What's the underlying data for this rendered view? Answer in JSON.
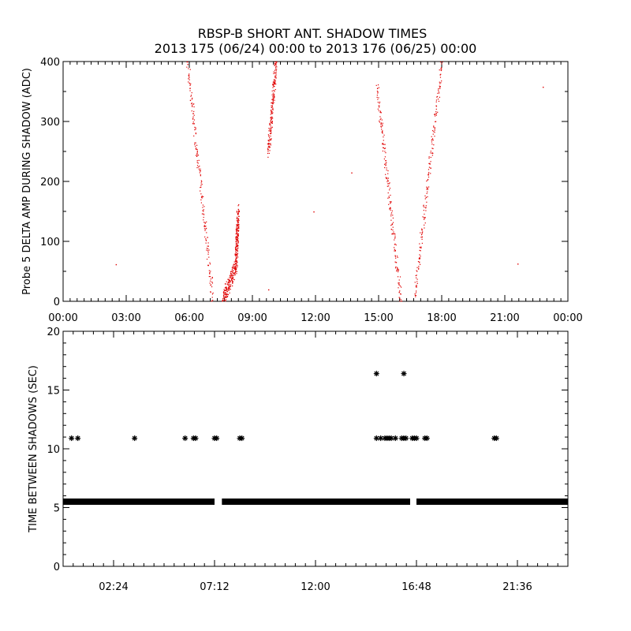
{
  "title": "RBSP-B SHORT ANT. SHADOW TIMES",
  "subtitle": "2013 175 (06/24) 00:00 to 2013 176 (06/25) 00:00",
  "chart_data": [
    {
      "type": "scatter",
      "ylabel": "Probe 5 DELTA AMP DURING SHADOW (ADC)",
      "xlim": [
        0,
        24
      ],
      "ylim": [
        0,
        400
      ],
      "xticks": [
        0,
        3,
        6,
        9,
        12,
        15,
        18,
        21,
        24
      ],
      "xtick_labels": [
        "00:00",
        "03:00",
        "06:00",
        "09:00",
        "12:00",
        "15:00",
        "18:00",
        "21:00",
        "00:00"
      ],
      "yticks": [
        0,
        100,
        200,
        300,
        400
      ],
      "ytick_labels": [
        "0",
        "100",
        "200",
        "300",
        "400"
      ],
      "color": "#e00000",
      "marker": "dot",
      "segments": [
        {
          "x_start": 5.9,
          "x_end": 7.1,
          "y_start": 400,
          "y_end": 5
        },
        {
          "x_start": 7.6,
          "x_end": 8.2,
          "y_start": 5,
          "y_end": 60
        },
        {
          "x_start": 8.2,
          "x_end": 8.3,
          "y_start": 60,
          "y_end": 150
        },
        {
          "x_start": 9.75,
          "x_end": 10.1,
          "y_start": 250,
          "y_end": 400
        },
        {
          "x_start": 14.9,
          "x_end": 16.05,
          "y_start": 360,
          "y_end": 3
        },
        {
          "x_start": 16.7,
          "x_end": 18.0,
          "y_start": 10,
          "y_end": 400
        }
      ],
      "isolated_points": [
        {
          "x": 2.5,
          "y": 62
        },
        {
          "x": 9.75,
          "y": 20
        },
        {
          "x": 11.9,
          "y": 150
        },
        {
          "x": 13.7,
          "y": 215
        },
        {
          "x": 21.6,
          "y": 63
        },
        {
          "x": 22.8,
          "y": 358
        }
      ]
    },
    {
      "type": "scatter",
      "ylabel": "TIME BETWEEN SHADOWS (SEC)",
      "xlim": [
        0,
        24
      ],
      "ylim": [
        0,
        20
      ],
      "xticks": [
        2.4,
        7.2,
        12.0,
        16.8,
        21.6
      ],
      "xtick_labels": [
        "02:24",
        "07:12",
        "12:00",
        "16:48",
        "21:36"
      ],
      "yticks": [
        0,
        5,
        10,
        15,
        20
      ],
      "ytick_labels": [
        "0",
        "5",
        "10",
        "15",
        "20"
      ],
      "color": "#000000",
      "marker": "asterisk",
      "baseline": {
        "y": 5.5,
        "segments": [
          [
            0,
            7.2
          ],
          [
            7.55,
            16.5
          ],
          [
            16.8,
            24
          ]
        ]
      },
      "points": [
        {
          "x": 0.4,
          "y": 10.9
        },
        {
          "x": 0.7,
          "y": 10.9
        },
        {
          "x": 3.4,
          "y": 10.9
        },
        {
          "x": 5.8,
          "y": 10.9
        },
        {
          "x": 6.2,
          "y": 10.9
        },
        {
          "x": 6.3,
          "y": 10.9
        },
        {
          "x": 7.2,
          "y": 10.9
        },
        {
          "x": 7.3,
          "y": 10.9
        },
        {
          "x": 8.4,
          "y": 10.9
        },
        {
          "x": 8.5,
          "y": 10.9
        },
        {
          "x": 14.9,
          "y": 16.4
        },
        {
          "x": 14.9,
          "y": 10.9
        },
        {
          "x": 15.1,
          "y": 10.9
        },
        {
          "x": 15.3,
          "y": 10.9
        },
        {
          "x": 15.4,
          "y": 10.9
        },
        {
          "x": 15.5,
          "y": 10.9
        },
        {
          "x": 15.6,
          "y": 10.9
        },
        {
          "x": 15.8,
          "y": 10.9
        },
        {
          "x": 16.2,
          "y": 16.4
        },
        {
          "x": 16.1,
          "y": 10.9
        },
        {
          "x": 16.2,
          "y": 10.9
        },
        {
          "x": 16.3,
          "y": 10.9
        },
        {
          "x": 16.6,
          "y": 10.9
        },
        {
          "x": 16.7,
          "y": 10.9
        },
        {
          "x": 16.8,
          "y": 10.9
        },
        {
          "x": 17.2,
          "y": 10.9
        },
        {
          "x": 17.3,
          "y": 10.9
        },
        {
          "x": 20.5,
          "y": 10.9
        },
        {
          "x": 20.6,
          "y": 10.9
        }
      ]
    }
  ]
}
